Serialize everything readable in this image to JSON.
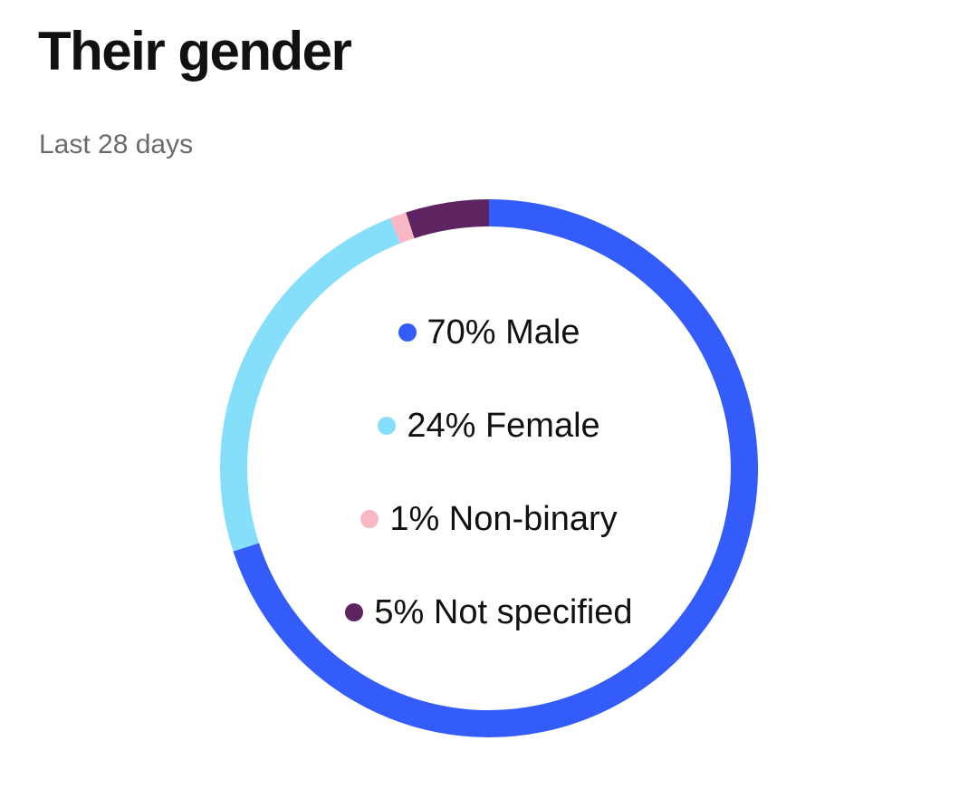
{
  "header": {
    "title": "Their gender",
    "subtitle": "Last 28 days"
  },
  "chart_data": {
    "type": "pie",
    "title": "Their gender",
    "subtitle": "Last 28 days",
    "slices": [
      {
        "label": "Male",
        "value": 70,
        "display": "70% Male",
        "color": "#345CFA"
      },
      {
        "label": "Female",
        "value": 24,
        "display": "24% Female",
        "color": "#86DFFA"
      },
      {
        "label": "Non-binary",
        "value": 1,
        "display": "1% Non-binary",
        "color": "#F8B7C2"
      },
      {
        "label": "Not specified",
        "value": 5,
        "display": "5% Not specified",
        "color": "#5E2462"
      }
    ],
    "legend_position": "center"
  }
}
